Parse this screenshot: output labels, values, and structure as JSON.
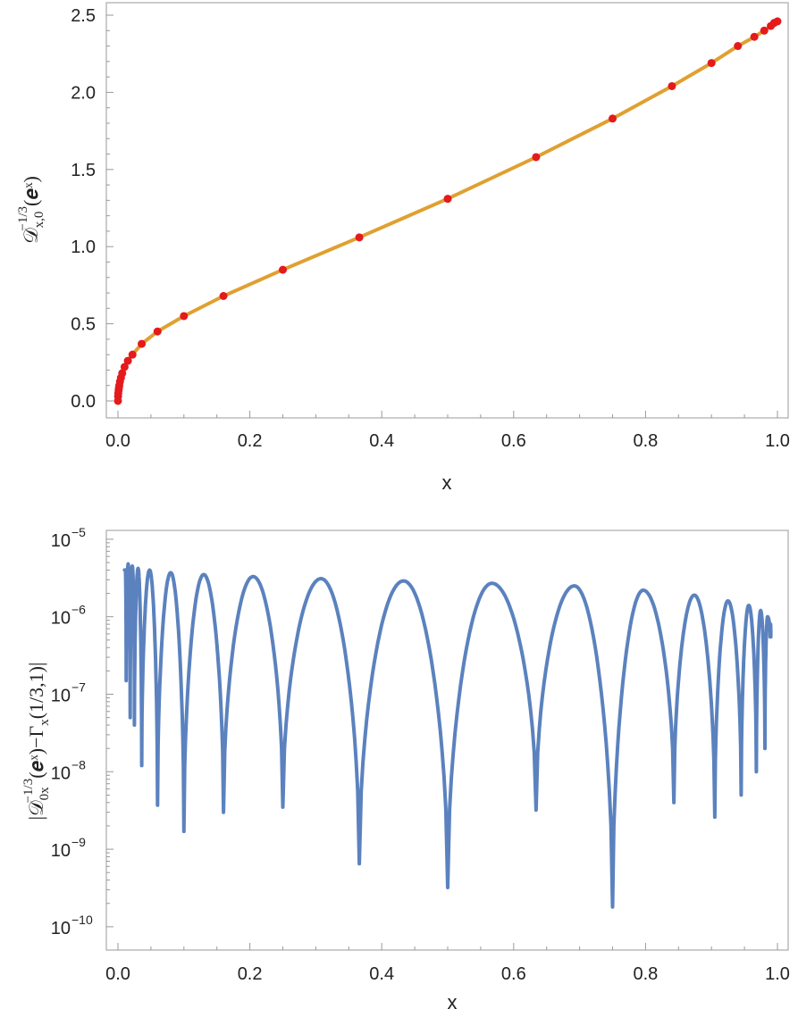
{
  "chart_data": [
    {
      "type": "line",
      "title": "",
      "xlabel": "x",
      "ylabel": "𝒟x,0−1/3(eˣ)",
      "ylabel_parts": {
        "main": "𝒟",
        "sub": "x,0",
        "sup": "−1/3",
        "arg": "(𝒆ˣ)"
      },
      "xlim": [
        0,
        1
      ],
      "ylim": [
        0,
        2.5
      ],
      "grid": false,
      "legend": "none",
      "x_ticks": [
        0.0,
        0.2,
        0.4,
        0.6,
        0.8,
        1.0
      ],
      "x_tick_labels": [
        "0.0",
        "0.2",
        "0.4",
        "0.6",
        "0.8",
        "1.0"
      ],
      "y_ticks": [
        0.0,
        0.5,
        1.0,
        1.5,
        2.0,
        2.5
      ],
      "y_tick_labels": [
        "0.0",
        "0.5",
        "1.0",
        "1.5",
        "2.0",
        "2.5"
      ],
      "series": [
        {
          "kind": "line",
          "color": "#E0A030",
          "x": [
            0.0,
            0.0002,
            0.001,
            0.003,
            0.006,
            0.01,
            0.02,
            0.035,
            0.06,
            0.1,
            0.16,
            0.25,
            0.366,
            0.5,
            0.634,
            0.75,
            0.84,
            0.9,
            0.94,
            0.97,
            0.99,
            1.0
          ],
          "y": [
            0.0,
            0.055,
            0.1,
            0.145,
            0.185,
            0.22,
            0.275,
            0.33,
            0.4,
            0.485,
            0.6,
            0.75,
            0.94,
            1.16,
            1.4,
            1.63,
            1.83,
            1.97,
            2.07,
            2.14,
            2.19,
            2.21
          ]
        },
        {
          "kind": "scatter",
          "color": "#E41A1C",
          "x": [
            0.0,
            0.0002,
            0.0005,
            0.001,
            0.0015,
            0.002,
            0.003,
            0.0045,
            0.0065,
            0.01,
            0.015,
            0.022,
            0.036,
            0.06,
            0.1,
            0.16,
            0.25,
            0.366,
            0.5,
            0.634,
            0.75,
            0.84,
            0.9,
            0.94,
            0.965,
            0.98,
            0.99,
            0.995,
            1.0
          ],
          "y": [
            0.0,
            0.03,
            0.05,
            0.07,
            0.085,
            0.1,
            0.125,
            0.15,
            0.18,
            0.22,
            0.26,
            0.3,
            0.37,
            0.45,
            0.55,
            0.68,
            0.85,
            1.06,
            1.31,
            1.58,
            1.83,
            2.04,
            2.19,
            2.3,
            2.36,
            2.4,
            2.43,
            2.45,
            2.46
          ]
        }
      ]
    },
    {
      "type": "line",
      "title": "",
      "xlabel": "x",
      "ylabel": "|𝒟0x−1/3(eˣ)−Γx(1/3,1)|",
      "ylabel_parts": {
        "open": "|𝒟",
        "sub": "0x",
        "sup": "−1/3",
        "mid": "(𝒆ˣ)−Γ",
        "sub2": "x",
        "close": "(1/3,1)|"
      },
      "xlim": [
        0,
        1
      ],
      "ylim": [
        5e-11,
        1.3e-05
      ],
      "yscale": "log",
      "grid": false,
      "legend": "none",
      "x_ticks": [
        0.0,
        0.2,
        0.4,
        0.6,
        0.8,
        1.0
      ],
      "x_tick_labels": [
        "0.0",
        "0.2",
        "0.4",
        "0.6",
        "0.8",
        "1.0"
      ],
      "y_ticks": [
        -10,
        -9,
        -8,
        -7,
        -6,
        -5
      ],
      "y_tick_labels": [
        "10",
        "10",
        "10",
        "10",
        "10",
        "10"
      ],
      "y_tick_exponents": [
        "−10",
        "−9",
        "−8",
        "−7",
        "−6",
        "−5"
      ],
      "series": [
        {
          "kind": "oscillation",
          "color": "#5B82BE",
          "x_range": [
            0.01,
            0.99
          ],
          "zeros": [
            0.0125,
            0.0185,
            0.025,
            0.036,
            0.06,
            0.1,
            0.16,
            0.25,
            0.366,
            0.5,
            0.634,
            0.75,
            0.843,
            0.905,
            0.945,
            0.968,
            0.981,
            0.989
          ],
          "dip_minima": [
            1.5e-07,
            5e-08,
            4e-08,
            1.2e-08,
            3.7e-09,
            1.7e-09,
            3e-09,
            3.5e-09,
            6.5e-10,
            3.2e-10,
            3.2e-09,
            1.8e-10,
            4e-09,
            2.6e-09,
            5e-09,
            1e-08,
            2e-08,
            5.5e-07
          ],
          "peaks": [
            4e-06,
            4.8e-06,
            4.5e-06,
            4.2e-06,
            4e-06,
            3.7e-06,
            3.5e-06,
            3.3e-06,
            3.1e-06,
            2.9e-06,
            2.7e-06,
            2.5e-06,
            2.2e-06,
            1.9e-06,
            1.6e-06,
            1.4e-06,
            1.2e-06,
            1e-06,
            8e-07
          ]
        }
      ]
    }
  ]
}
